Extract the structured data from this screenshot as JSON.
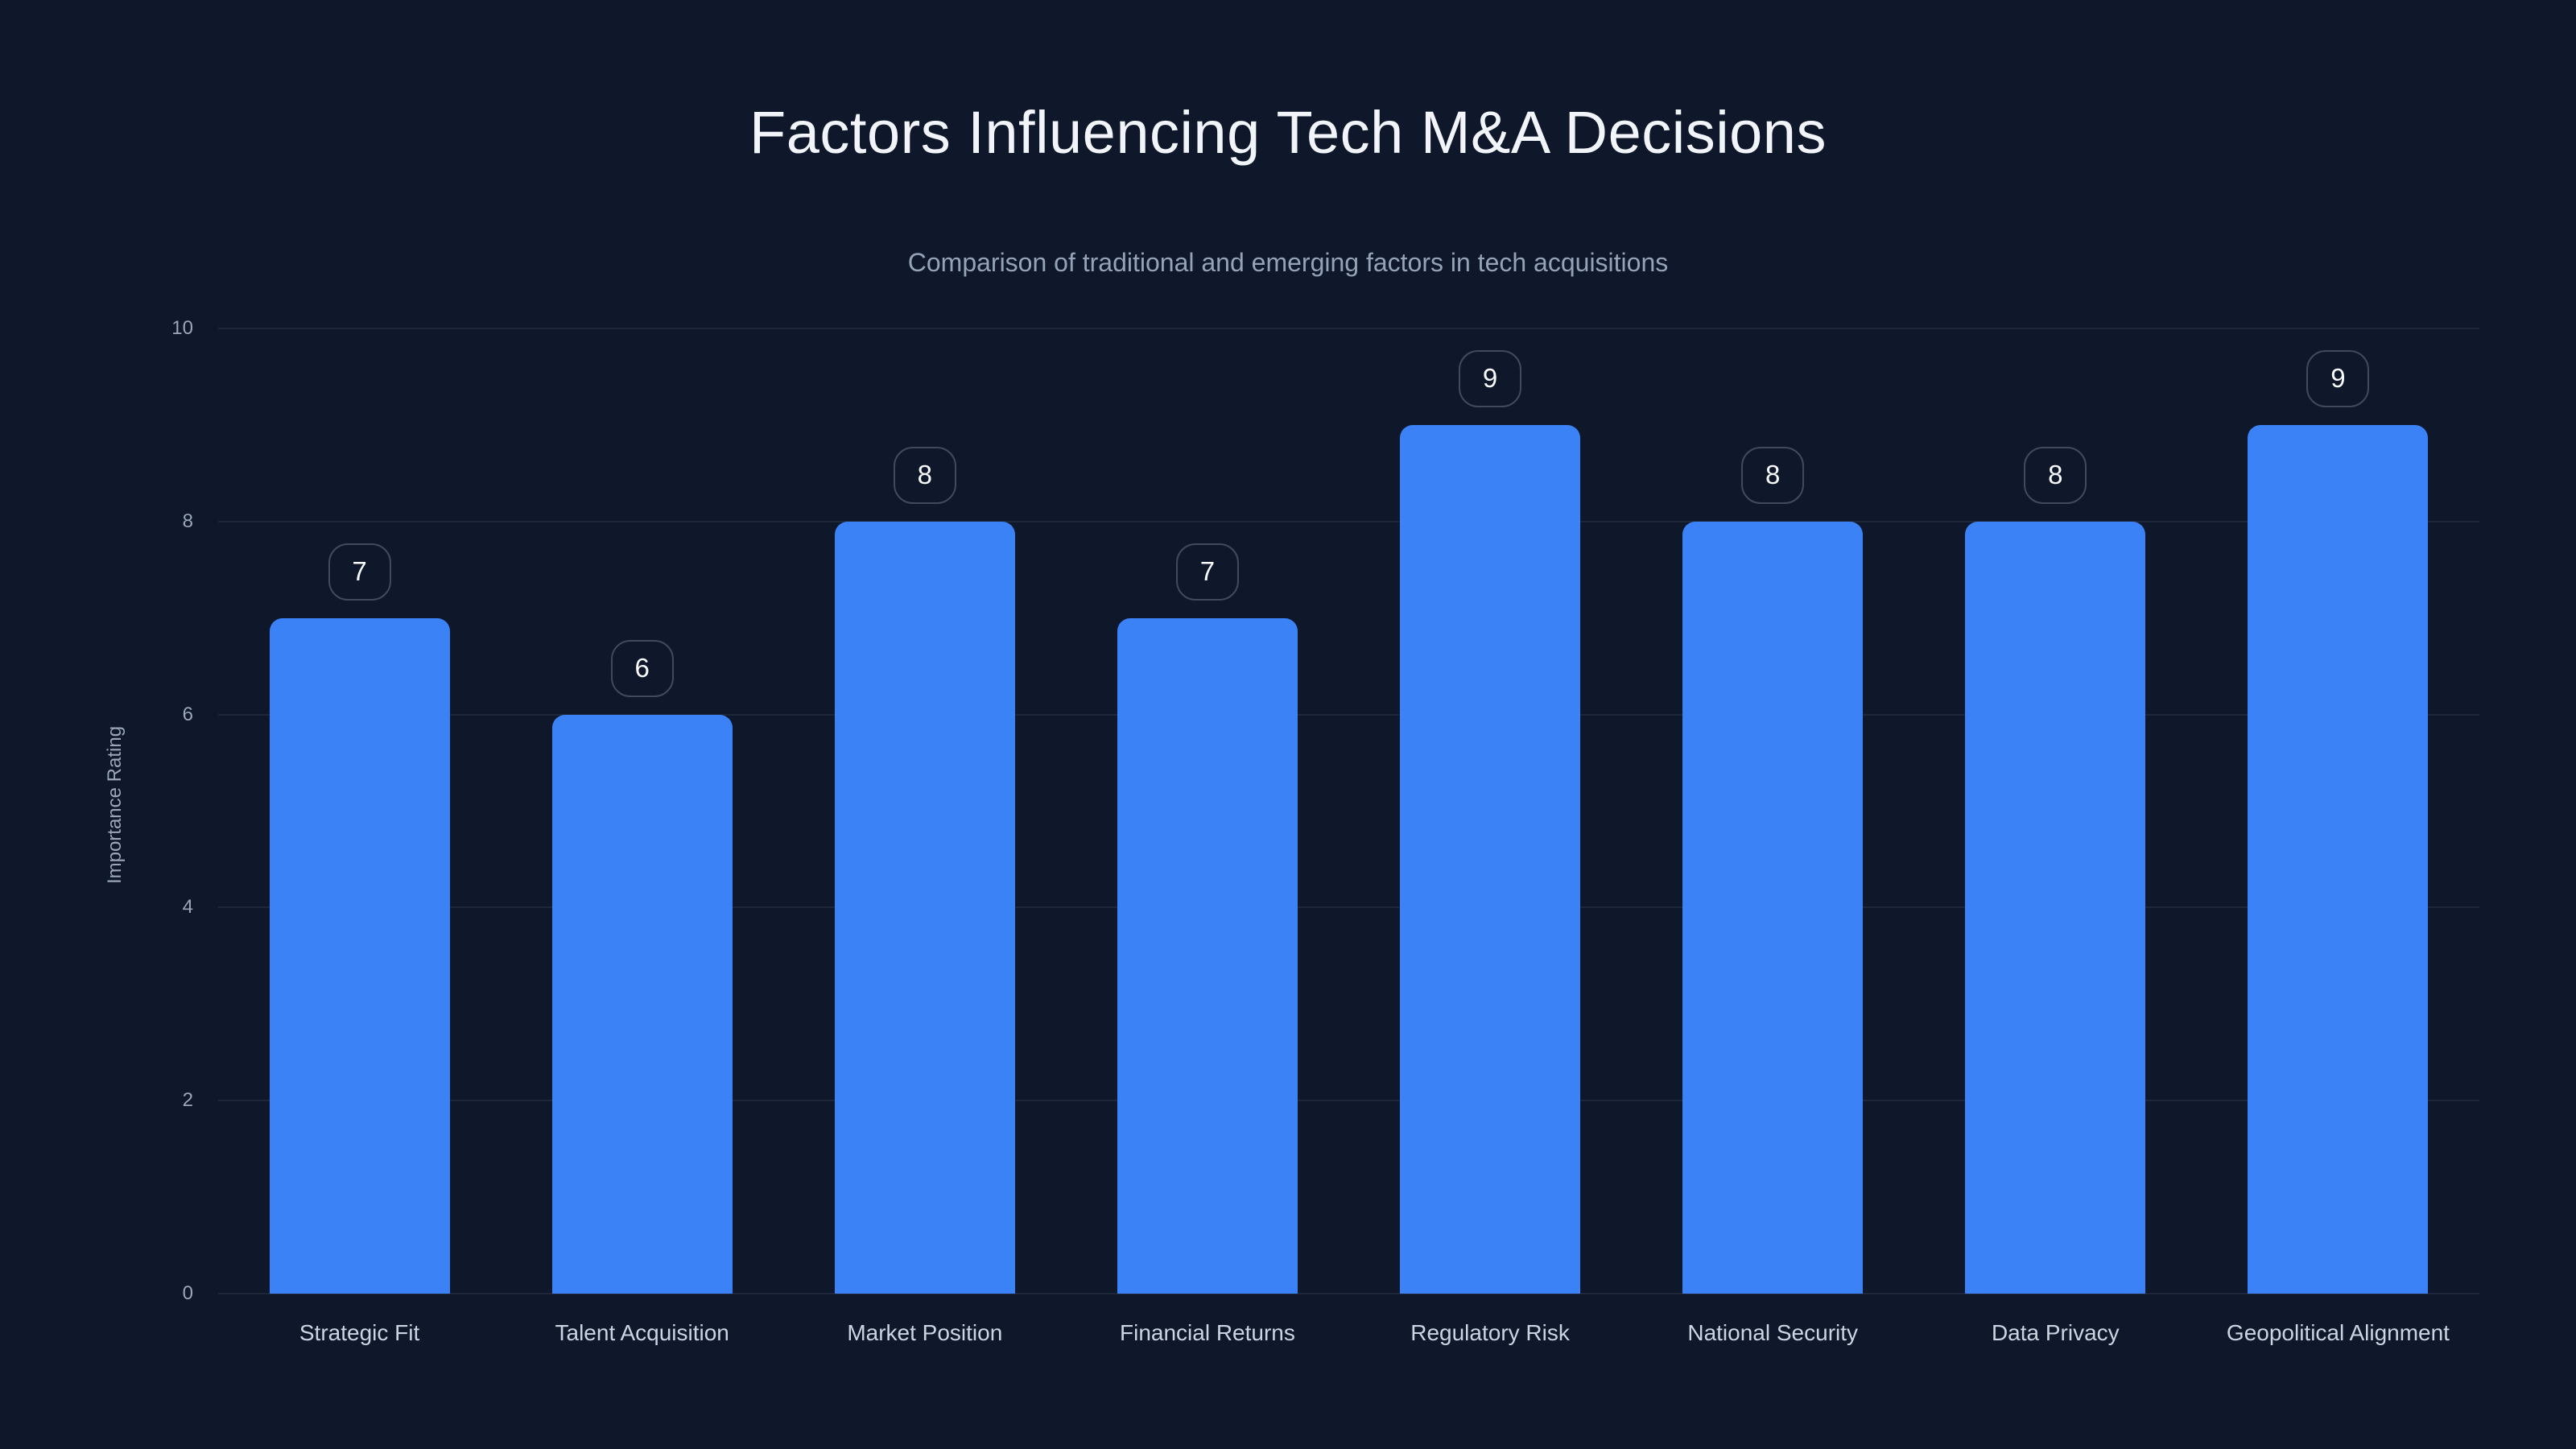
{
  "title": "Factors Influencing Tech M&A Decisions",
  "subtitle": "Comparison of traditional and emerging factors in tech acquisitions",
  "chart_data": {
    "type": "bar",
    "title": "Factors Influencing Tech M&A Decisions",
    "subtitle": "Comparison of traditional and emerging factors in tech acquisitions",
    "categories": [
      "Strategic Fit",
      "Talent Acquisition",
      "Market Position",
      "Financial Returns",
      "Regulatory Risk",
      "National Security",
      "Data Privacy",
      "Geopolitical Alignment"
    ],
    "values": [
      7,
      6,
      8,
      7,
      9,
      8,
      8,
      9
    ],
    "value_labels": [
      "7",
      "6",
      "8",
      "7",
      "9",
      "8",
      "8",
      "9"
    ],
    "xlabel": "",
    "ylabel": "Importance Rating",
    "ylim": [
      0,
      10
    ],
    "yticks": [
      0,
      2,
      4,
      6,
      8,
      10
    ],
    "grid": "horizontal",
    "legend": "none"
  },
  "colors": {
    "background": "#0f172a",
    "bar": "#3b82f6",
    "gridline": "#1d2739",
    "title": "#f1f5f9",
    "subtitle": "#94a3b8",
    "tick_label": "#9aa7b8",
    "x_label": "#cbd5e1",
    "badge_border": "#3f4a5e",
    "badge_text": "#f8fafc"
  }
}
